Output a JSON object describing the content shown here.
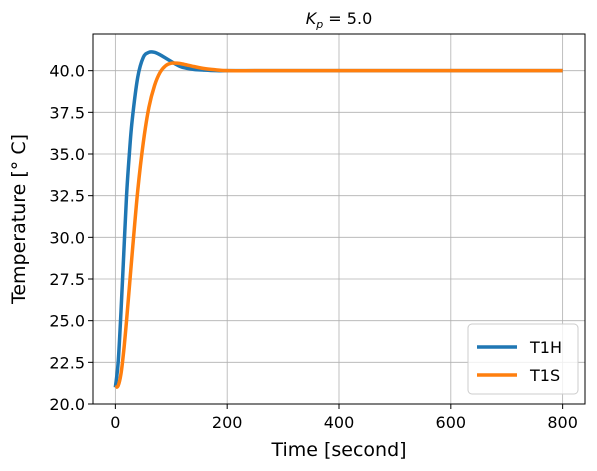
{
  "chart_data": {
    "type": "line",
    "title_var": "K",
    "title_sub": "p",
    "title_rest": " = 5.0",
    "xlabel": "Time [second]",
    "ylabel": "Temperature [° C]",
    "xlim": [
      -40,
      840
    ],
    "ylim": [
      20.0,
      42.2
    ],
    "xticks": [
      0,
      200,
      400,
      600,
      800
    ],
    "yticks": [
      20.0,
      22.5,
      25.0,
      27.5,
      30.0,
      32.5,
      35.0,
      37.5,
      40.0
    ],
    "xtick_labels": [
      "0",
      "200",
      "400",
      "600",
      "800"
    ],
    "ytick_labels": [
      "20.0",
      "22.5",
      "25.0",
      "27.5",
      "30.0",
      "32.5",
      "35.0",
      "37.5",
      "40.0"
    ],
    "grid": true,
    "legend_position": "lower-right",
    "series": [
      {
        "name": "T1H",
        "color": "#1f77b4",
        "x": [
          0,
          5,
          10,
          15,
          20,
          25,
          30,
          40,
          50,
          60,
          70,
          80,
          90,
          100,
          110,
          120,
          140,
          160,
          180,
          200,
          250,
          300,
          400,
          500,
          600,
          700,
          800
        ],
        "y": [
          21.0,
          22.5,
          25.5,
          29.0,
          32.5,
          35.0,
          37.0,
          39.6,
          40.8,
          41.1,
          41.1,
          40.95,
          40.75,
          40.55,
          40.35,
          40.2,
          40.08,
          40.03,
          40.0,
          40.0,
          40.0,
          40.0,
          40.0,
          40.0,
          40.0,
          40.0,
          40.0
        ]
      },
      {
        "name": "T1S",
        "color": "#ff7f0e",
        "x": [
          0,
          5,
          10,
          15,
          20,
          25,
          30,
          40,
          50,
          60,
          70,
          80,
          90,
          100,
          110,
          120,
          140,
          160,
          180,
          200,
          250,
          300,
          400,
          500,
          600,
          700,
          800
        ],
        "y": [
          21.0,
          21.1,
          21.8,
          23.2,
          25.0,
          27.0,
          29.0,
          32.8,
          35.7,
          37.8,
          39.1,
          39.9,
          40.3,
          40.45,
          40.45,
          40.4,
          40.25,
          40.12,
          40.05,
          40.0,
          40.0,
          40.0,
          40.0,
          40.0,
          40.0,
          40.0,
          40.0
        ]
      }
    ]
  }
}
